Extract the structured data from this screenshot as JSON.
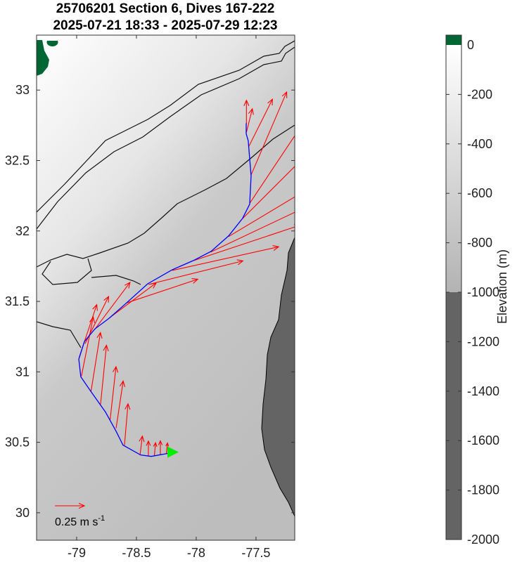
{
  "title_line1": "25706201 Section 6, Dives 167-222",
  "title_line2": "2025-07-21 18:33 - 2025-07-29 12:23",
  "chart_data": {
    "type": "map-quiver",
    "xlim": [
      -79.335,
      -77.176
    ],
    "ylim": [
      29.805,
      33.39
    ],
    "xticks": [
      -79,
      -78.5,
      -78,
      -77.5
    ],
    "xtick_labels": [
      "-79",
      "-78.5",
      "-78",
      "-77.5"
    ],
    "yticks": [
      30,
      30.5,
      31,
      31.5,
      32,
      32.5,
      33
    ],
    "ytick_labels": [
      "30",
      "30.5",
      "31",
      "31.5",
      "32",
      "32.5",
      "33"
    ],
    "track_color": "#0000ff",
    "vector_color": "#ff0000",
    "marker_color": "#00ee00",
    "track": [
      [
        -78.212,
        30.425
      ],
      [
        -78.376,
        30.4
      ],
      [
        -78.465,
        30.41
      ],
      [
        -78.612,
        30.48
      ],
      [
        -78.671,
        30.58
      ],
      [
        -78.759,
        30.715
      ],
      [
        -78.876,
        30.855
      ],
      [
        -78.965,
        30.965
      ],
      [
        -78.982,
        31.09
      ],
      [
        -78.935,
        31.215
      ],
      [
        -78.847,
        31.305
      ],
      [
        -78.729,
        31.38
      ],
      [
        -78.582,
        31.49
      ],
      [
        -78.406,
        31.625
      ],
      [
        -78.2,
        31.725
      ],
      [
        -78.024,
        31.79
      ],
      [
        -77.876,
        31.855
      ],
      [
        -77.729,
        31.965
      ],
      [
        -77.612,
        32.09
      ],
      [
        -77.553,
        32.19
      ],
      [
        -77.541,
        32.39
      ],
      [
        -77.565,
        32.64
      ],
      [
        -77.582,
        32.69
      ],
      [
        -77.582,
        32.765
      ]
    ],
    "current_position": [
      -78.17,
      30.43
    ],
    "vectors": [
      {
        "lon": -78.25,
        "lat": 30.42,
        "u": 0.01,
        "v": 0.09
      },
      {
        "lon": -78.3,
        "lat": 30.41,
        "u": 0.0,
        "v": 0.12
      },
      {
        "lon": -78.35,
        "lat": 30.405,
        "u": 0.01,
        "v": 0.11
      },
      {
        "lon": -78.4,
        "lat": 30.4,
        "u": 0.0,
        "v": 0.13
      },
      {
        "lon": -78.47,
        "lat": 30.41,
        "u": 0.02,
        "v": 0.16
      },
      {
        "lon": -78.6,
        "lat": 30.48,
        "u": 0.03,
        "v": 0.35
      },
      {
        "lon": -78.67,
        "lat": 30.6,
        "u": 0.06,
        "v": 0.4
      },
      {
        "lon": -78.72,
        "lat": 30.66,
        "u": 0.05,
        "v": 0.45
      },
      {
        "lon": -78.8,
        "lat": 30.77,
        "u": 0.05,
        "v": 0.5
      },
      {
        "lon": -78.88,
        "lat": 30.86,
        "u": 0.08,
        "v": 0.5
      },
      {
        "lon": -78.96,
        "lat": 30.97,
        "u": 0.1,
        "v": 0.5
      },
      {
        "lon": -78.98,
        "lat": 31.1,
        "u": 0.15,
        "v": 0.45
      },
      {
        "lon": -78.93,
        "lat": 31.2,
        "u": 0.2,
        "v": 0.4
      },
      {
        "lon": -78.85,
        "lat": 31.3,
        "u": 0.3,
        "v": 0.4
      },
      {
        "lon": -78.73,
        "lat": 31.38,
        "u": 0.4,
        "v": 0.3
      },
      {
        "lon": -78.58,
        "lat": 31.49,
        "u": 0.6,
        "v": 0.2
      },
      {
        "lon": -78.4,
        "lat": 31.62,
        "u": 0.8,
        "v": 0.2
      },
      {
        "lon": -78.2,
        "lat": 31.72,
        "u": 0.9,
        "v": 0.2
      },
      {
        "lon": -78.02,
        "lat": 31.79,
        "u": 0.9,
        "v": 0.3
      },
      {
        "lon": -77.88,
        "lat": 31.85,
        "u": 0.95,
        "v": 0.45
      },
      {
        "lon": -77.73,
        "lat": 31.96,
        "u": 1.0,
        "v": 0.6
      },
      {
        "lon": -77.61,
        "lat": 32.09,
        "u": 0.9,
        "v": 0.9
      },
      {
        "lon": -77.55,
        "lat": 32.2,
        "u": 0.6,
        "v": 0.9
      },
      {
        "lon": -77.54,
        "lat": 32.4,
        "u": 0.3,
        "v": 0.7
      },
      {
        "lon": -77.56,
        "lat": 32.6,
        "u": 0.2,
        "v": 0.4
      },
      {
        "lon": -77.58,
        "lat": 32.7,
        "u": 0.05,
        "v": 0.2
      },
      {
        "lon": -77.58,
        "lat": 32.76,
        "u": 0.0,
        "v": 0.2
      }
    ],
    "scale_vector": {
      "u": 0.25,
      "label": "0.25 m s",
      "label_sup": "-1"
    },
    "colorbar": {
      "label": "Elevation (m)",
      "range": [
        -2000,
        0
      ],
      "ticks": [
        0,
        -200,
        -400,
        -600,
        -800,
        -1000,
        -1200,
        -1400,
        -1600,
        -1800,
        -2000
      ],
      "tick_labels": [
        "0",
        "-200",
        "-400",
        "-600",
        "-800",
        "-1000",
        "-1200",
        "-1400",
        "-1600",
        "-1800",
        "-2000"
      ],
      "land_color": "#006633",
      "shallow_color": "#ffffff",
      "mid_color": "#bbbbbb",
      "deep_color": "#646464"
    }
  }
}
